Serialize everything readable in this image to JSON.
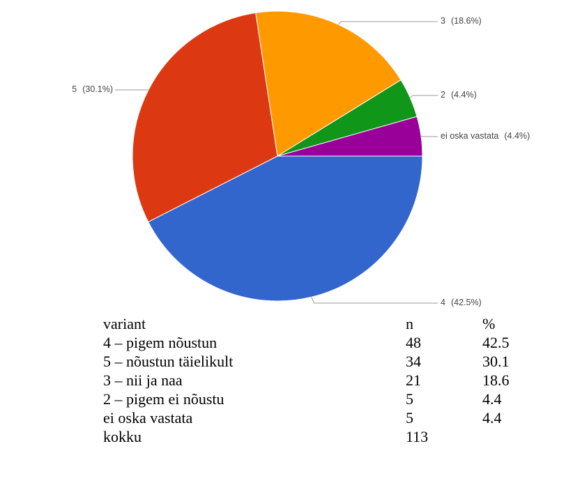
{
  "chart_data": {
    "type": "pie",
    "categories": [
      "4",
      "5",
      "3",
      "2",
      "ei oska vastata"
    ],
    "values": [
      42.5,
      30.1,
      18.6,
      4.4,
      4.4
    ],
    "value_labels": [
      "(42.5%)",
      "(30.1%)",
      "(18.6%)",
      "(4.4%)",
      "(4.4%)"
    ],
    "colors": [
      "#3366cc",
      "#dc3912",
      "#ff9900",
      "#109618",
      "#990099"
    ]
  },
  "table": {
    "header": [
      "variant",
      "n",
      "%"
    ],
    "rows": [
      [
        "4 – pigem nõustun",
        48,
        42.5
      ],
      [
        "5 – nõustun täielikult",
        34,
        30.1
      ],
      [
        "3 – nii ja naa",
        21,
        18.6
      ],
      [
        "2 – pigem ei nõustu",
        5,
        4.4
      ],
      [
        "ei oska vastata",
        5,
        4.4
      ],
      [
        "kokku",
        113
      ]
    ]
  }
}
